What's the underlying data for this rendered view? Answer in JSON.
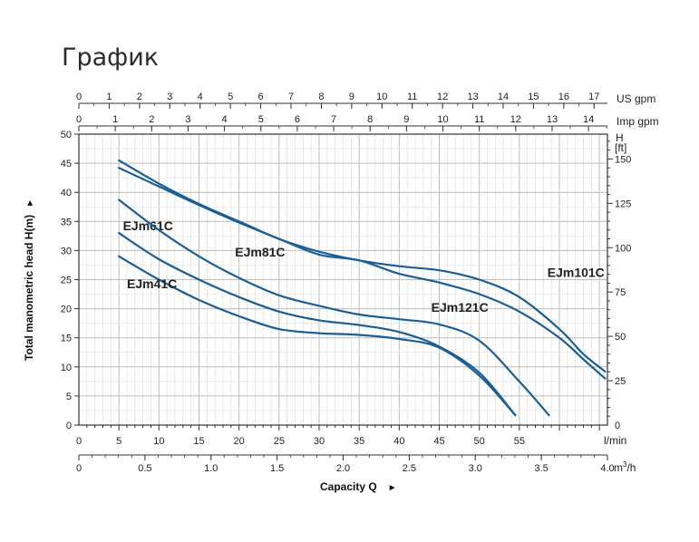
{
  "page_title": "График",
  "chart_data": {
    "type": "line",
    "title": "График",
    "xlabel": "Capacity Q",
    "ylabel": "Total manometric head H(m)",
    "arrow_glyph": "►",
    "grid": true,
    "x_axis": {
      "unit": "l/min",
      "range": [
        0,
        66
      ],
      "tick_values": [
        0,
        5,
        10,
        15,
        20,
        25,
        30,
        35,
        40,
        45,
        50,
        55
      ],
      "tick_labels": [
        "0",
        "5",
        "10",
        "15",
        "20",
        "25",
        "30",
        "35",
        "40",
        "45",
        "50",
        "55"
      ]
    },
    "x_axis_m3h": {
      "unit": "m",
      "unit_sup": "3",
      "unit_suffix": "/h",
      "range": [
        0,
        4.0
      ],
      "tick_values": [
        0,
        0.5,
        1.0,
        1.5,
        2.0,
        2.5,
        3.0,
        3.5,
        4.0
      ],
      "tick_labels": [
        "0",
        "0.5",
        "1.0",
        "1.5",
        "2.0",
        "2.5",
        "3.0",
        "3.5",
        "4.0"
      ]
    },
    "x_axis_us_gpm": {
      "unit": "US gpm",
      "range": [
        0,
        17.44
      ],
      "tick_values": [
        0,
        1,
        2,
        3,
        4,
        5,
        6,
        7,
        8,
        9,
        10,
        11,
        12,
        13,
        14,
        15,
        16,
        17
      ],
      "tick_labels": [
        "0",
        "1",
        "2",
        "3",
        "4",
        "5",
        "6",
        "7",
        "8",
        "9",
        "10",
        "11",
        "12",
        "13",
        "14",
        "15",
        "16",
        "17"
      ]
    },
    "x_axis_imp_gpm": {
      "unit": "Imp gpm",
      "range": [
        0,
        14.52
      ],
      "tick_values": [
        0,
        1,
        2,
        3,
        4,
        5,
        6,
        7,
        8,
        9,
        10,
        11,
        12,
        13,
        14
      ],
      "tick_labels": [
        "0",
        "1",
        "2",
        "3",
        "4",
        "5",
        "6",
        "7",
        "8",
        "9",
        "10",
        "11",
        "12",
        "13",
        "14"
      ]
    },
    "y_axis": {
      "unit": "m",
      "range": [
        0,
        50
      ],
      "tick_values": [
        0,
        5,
        10,
        15,
        20,
        25,
        30,
        35,
        40,
        45,
        50
      ],
      "tick_labels": [
        "0",
        "5",
        "10",
        "15",
        "20",
        "25",
        "30",
        "35",
        "40",
        "45",
        "50"
      ]
    },
    "y_axis_ft": {
      "title": "H",
      "unit": "[ft]",
      "range": [
        0,
        164
      ],
      "tick_values": [
        0,
        25,
        50,
        75,
        100,
        125,
        150
      ],
      "tick_labels": [
        "0",
        "25",
        "50",
        "75",
        "100",
        "125",
        "150"
      ]
    },
    "series": [
      {
        "name": "EJm41C",
        "color": "#1a5e96",
        "label_at": [
          6,
          23.5
        ],
        "x": [
          5,
          10,
          15,
          20,
          25,
          30,
          35,
          40,
          45,
          50,
          54.5
        ],
        "y": [
          29,
          25,
          21.5,
          18.7,
          16.5,
          15.8,
          15.5,
          14.8,
          13.3,
          8.5,
          1.7
        ]
      },
      {
        "name": "EJm61C",
        "color": "#1a5e96",
        "label_at": [
          5.5,
          33.5
        ],
        "x": [
          5,
          10,
          15,
          20,
          25,
          30,
          35,
          40,
          45,
          50,
          54.5
        ],
        "y": [
          33,
          28.5,
          25,
          22,
          19.5,
          18,
          17.2,
          16,
          13.5,
          9,
          1.7
        ]
      },
      {
        "name": "EJm81C",
        "color": "#1a5e96",
        "label_at": [
          19.5,
          29
        ],
        "x": [
          5,
          10,
          15,
          20,
          25,
          30,
          35,
          40,
          45,
          50,
          55,
          58.7
        ],
        "y": [
          38.7,
          33.5,
          29,
          25.3,
          22.3,
          20.5,
          19,
          18.2,
          17.3,
          14.5,
          7.5,
          1.7
        ]
      },
      {
        "name": "EJm101C",
        "color": "#1a5e96",
        "label_at": [
          58.5,
          25.5
        ],
        "x": [
          5,
          10,
          15,
          20,
          25,
          30,
          35,
          40,
          45,
          50,
          55,
          60,
          63,
          65.7
        ],
        "y": [
          45.5,
          41.5,
          38,
          35,
          32,
          29.8,
          28.3,
          27.3,
          26.6,
          25,
          22,
          16.5,
          12.2,
          9.2
        ]
      },
      {
        "name": "EJm121C",
        "color": "#1a5e96",
        "label_at": [
          44,
          19.5
        ],
        "x": [
          5,
          10,
          15,
          20,
          25,
          30,
          35,
          40,
          45,
          50,
          55,
          60,
          63,
          65.7
        ],
        "y": [
          44.2,
          41,
          37.8,
          34.8,
          32,
          29.3,
          28.3,
          26,
          24.5,
          22.5,
          19.5,
          15,
          11.3,
          8
        ]
      }
    ]
  }
}
